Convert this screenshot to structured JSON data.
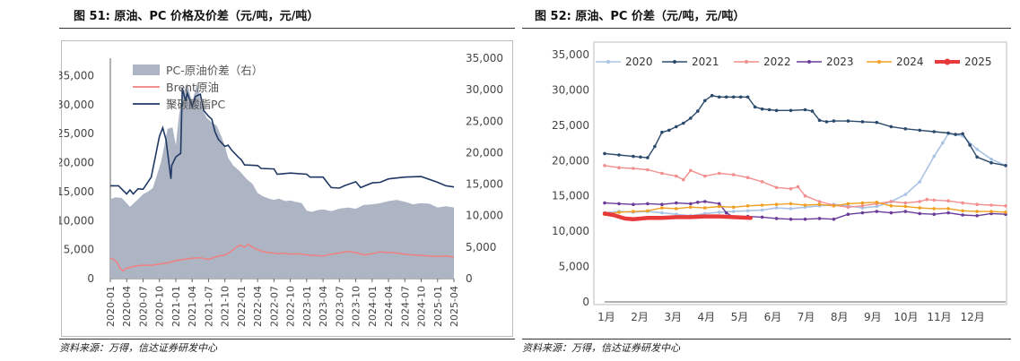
{
  "left": {
    "title": "图 51:  原油、PC 价格及价差（元/吨，元/吨）",
    "source": "资料来源：万得，信达证券研发中心",
    "chart_data": {
      "type": "area+line",
      "x_ticks": [
        "2020-01",
        "2020-04",
        "2020-07",
        "2020-10",
        "2021-01",
        "2021-04",
        "2021-07",
        "2021-10",
        "2022-01",
        "2022-04",
        "2022-07",
        "2022-10",
        "2023-01",
        "2023-04",
        "2023-07",
        "2023-10",
        "2024-01",
        "2024-04",
        "2024-07",
        "2024-10",
        "2025-01",
        "2025-04"
      ],
      "y_left_ticks": [
        "0",
        "5,000",
        "10,000",
        "15,000",
        "20,000",
        "25,000",
        "30,000",
        "35,000"
      ],
      "y_right_ticks": [
        "0",
        "5,000",
        "10,000",
        "15,000",
        "20,000",
        "25,000",
        "30,000",
        "35,000"
      ],
      "ylim_left": [
        0,
        38000
      ],
      "ylim_right": [
        0,
        35000
      ],
      "series": [
        {
          "name": "PC-原油价差（右）",
          "axis": "right",
          "kind": "area",
          "color": "#adb5c5",
          "x": [
            0,
            0.3,
            0.7,
            1.2,
            1.7,
            2,
            2.3,
            2.6,
            3.1,
            3.5,
            3.8,
            4,
            4.2,
            4.4,
            4.7,
            5,
            5.3,
            5.6,
            5.9,
            6.2,
            6.5,
            6.8,
            7,
            7.2,
            7.5,
            7.8,
            8,
            8.3,
            8.7,
            9,
            9.3,
            9.7,
            10,
            10.3,
            10.7,
            11,
            11.3,
            11.7,
            12,
            12.3,
            12.7,
            13,
            13.5,
            14,
            14.5,
            15,
            15.5,
            16,
            16.5,
            17,
            17.5,
            18,
            18.5,
            19,
            19.5,
            20,
            20.5,
            21,
            21
          ],
          "y": [
            12600,
            12900,
            12800,
            11400,
            12600,
            13400,
            13800,
            14400,
            18500,
            23800,
            24000,
            21200,
            26000,
            29000,
            31000,
            28000,
            31000,
            27000,
            25500,
            24800,
            24300,
            22500,
            21000,
            19200,
            18000,
            17300,
            16800,
            15900,
            15000,
            13600,
            13100,
            12700,
            12500,
            12700,
            12300,
            12400,
            12200,
            12000,
            10800,
            10600,
            10900,
            11000,
            10700,
            11100,
            11300,
            11100,
            11700,
            11800,
            12000,
            12300,
            12500,
            12200,
            11800,
            12000,
            11900,
            11300,
            11500,
            11300,
            11200
          ]
        },
        {
          "name": "Brent原油",
          "axis": "left",
          "kind": "line",
          "color": "#f08080",
          "x": [
            0,
            0.2,
            0.4,
            0.6,
            0.8,
            1,
            1.3,
            1.6,
            2,
            2.5,
            3,
            3.5,
            4,
            4.5,
            5,
            5.5,
            6,
            6.5,
            7,
            7.3,
            7.6,
            7.9,
            8.2,
            8.4,
            8.6,
            8.8,
            9,
            9.3,
            9.6,
            10,
            10.3,
            10.6,
            11,
            11.5,
            12,
            12.5,
            13,
            13.5,
            14,
            14.5,
            15,
            15.5,
            16,
            16.5,
            17,
            17.5,
            18,
            18.5,
            19,
            19.5,
            20,
            20.5,
            21
          ],
          "y": [
            3500,
            3300,
            2900,
            1700,
            1300,
            1800,
            2000,
            2200,
            2300,
            2300,
            2500,
            2700,
            3100,
            3300,
            3500,
            3600,
            3300,
            3800,
            4100,
            4500,
            5200,
            5800,
            5400,
            5900,
            5600,
            5200,
            5000,
            4700,
            4500,
            4400,
            4300,
            4400,
            4200,
            4300,
            4100,
            4000,
            3900,
            4200,
            4400,
            4700,
            4500,
            4100,
            4300,
            4600,
            4500,
            4400,
            4200,
            4100,
            4000,
            3900,
            3800,
            3900,
            3700
          ]
        },
        {
          "name": "聚碳酸酯PC",
          "axis": "left",
          "kind": "line",
          "color": "#1f3864",
          "x": [
            0,
            0.5,
            1,
            1.2,
            1.4,
            1.7,
            2,
            2.5,
            3,
            3.2,
            3.4,
            3.7,
            3.75,
            4,
            4.3,
            4.4,
            4.6,
            4.7,
            5,
            5.2,
            5.5,
            5.7,
            6,
            6.2,
            6.4,
            6.6,
            6.8,
            7,
            7.2,
            7.4,
            7.8,
            8,
            8.2,
            9,
            9.1,
            9.2,
            10,
            10.2,
            11,
            12,
            12.2,
            13,
            13.5,
            14,
            14.3,
            15,
            15.3,
            16,
            16.5,
            17,
            18,
            19,
            19.5,
            20,
            20.5,
            21
          ],
          "y": [
            16000,
            16000,
            14600,
            15300,
            14600,
            15500,
            15400,
            17500,
            24500,
            26000,
            24000,
            17200,
            19500,
            21000,
            21600,
            32800,
            30600,
            32000,
            29700,
            31400,
            31800,
            29000,
            28000,
            27500,
            25300,
            24000,
            23400,
            22800,
            23000,
            22200,
            21000,
            20500,
            19600,
            19500,
            19300,
            19000,
            18900,
            18000,
            18200,
            18000,
            17500,
            17500,
            15700,
            15600,
            16000,
            16700,
            15700,
            16500,
            16600,
            17200,
            17500,
            17600,
            17100,
            16600,
            16000,
            15800
          ]
        }
      ]
    }
  },
  "right": {
    "title": "图 52:  原油、PC 价差（元/吨，元/吨）",
    "source": "资料来源：万得，信达证券研发中心",
    "chart_data": {
      "type": "line",
      "x_ticks": [
        "1月",
        "2月",
        "3月",
        "4月",
        "5月",
        "6月",
        "7月",
        "8月",
        "9月",
        "10月",
        "11月",
        "12月"
      ],
      "y_ticks": [
        "0",
        "5,000",
        "10,000",
        "15,000",
        "20,000",
        "25,000",
        "30,000",
        "35,000"
      ],
      "ylim": [
        0,
        35000
      ],
      "series": [
        {
          "name": "2020",
          "color": "#a9c4e4",
          "width": 1.6,
          "markers": true,
          "x": [
            0,
            0.5,
            1,
            1.5,
            2,
            2.5,
            3,
            3.5,
            4,
            4.5,
            5,
            5.5,
            6,
            6.5,
            7,
            7.5,
            8,
            8.5,
            9,
            9.5,
            10,
            10.5,
            11,
            11.5,
            11.8,
            12,
            12.5,
            13,
            13.5,
            14
          ],
          "y": [
            12600,
            12800,
            12700,
            12800,
            12600,
            12400,
            12200,
            12500,
            12700,
            12800,
            12900,
            13000,
            13300,
            13200,
            13400,
            13600,
            13800,
            13600,
            13300,
            13500,
            14200,
            15200,
            17000,
            20600,
            22500,
            23800,
            23500,
            21600,
            20200,
            19300
          ]
        },
        {
          "name": "2021",
          "color": "#2b4a6b",
          "width": 1.4,
          "markers": true,
          "x": [
            0,
            0.5,
            1,
            1.25,
            1.5,
            1.75,
            2,
            2.25,
            2.5,
            2.75,
            3,
            3.25,
            3.5,
            3.75,
            4,
            4.25,
            4.5,
            4.75,
            5,
            5.25,
            5.5,
            5.75,
            6,
            6.5,
            7,
            7.25,
            7.5,
            7.75,
            8,
            8.5,
            9,
            9.5,
            10,
            10.5,
            11,
            11.5,
            12,
            12.25,
            12.5,
            12.75,
            13,
            13.5,
            14
          ],
          "y": [
            21000,
            20800,
            20600,
            20500,
            20400,
            22000,
            24000,
            24300,
            24800,
            25300,
            26000,
            27000,
            28500,
            29200,
            29000,
            29000,
            29000,
            29000,
            29000,
            27600,
            27300,
            27200,
            27100,
            27100,
            27200,
            27000,
            25700,
            25500,
            25600,
            25600,
            25500,
            25400,
            24800,
            24500,
            24300,
            24100,
            23900,
            23700,
            23800,
            22200,
            20500,
            19700,
            19300
          ]
        },
        {
          "name": "2022",
          "color": "#f28e8e",
          "width": 1.4,
          "markers": true,
          "x": [
            0,
            0.5,
            1,
            1.5,
            2,
            2.5,
            2.75,
            3,
            3.5,
            4,
            4.5,
            5,
            5.5,
            6,
            6.5,
            6.75,
            7,
            7.5,
            8,
            8.5,
            9,
            9.5,
            10,
            10.5,
            11,
            11.25,
            11.5,
            12,
            12.5,
            13,
            13.5,
            14
          ],
          "y": [
            19300,
            19000,
            18900,
            18700,
            18200,
            17800,
            17300,
            18600,
            17800,
            18200,
            18000,
            17600,
            17000,
            16200,
            16000,
            16300,
            15000,
            14200,
            13700,
            13400,
            13600,
            13900,
            14200,
            14000,
            14200,
            14500,
            14400,
            14300,
            14000,
            13800,
            13700,
            13600
          ]
        },
        {
          "name": "2023",
          "color": "#6a3d9a",
          "width": 1.4,
          "markers": true,
          "x": [
            0,
            0.5,
            1,
            1.5,
            2,
            2.5,
            3,
            3.25,
            3.5,
            4,
            4.25,
            4.5,
            5,
            5.5,
            6,
            6.5,
            7,
            7.5,
            8,
            8.5,
            9,
            9.5,
            10,
            10.5,
            11,
            11.5,
            12,
            12.5,
            13,
            13.5,
            14
          ],
          "y": [
            14000,
            13900,
            13800,
            13900,
            13800,
            14000,
            13900,
            14100,
            14200,
            13900,
            12600,
            12000,
            12100,
            12000,
            11800,
            11700,
            11700,
            11800,
            11700,
            12400,
            12600,
            12800,
            12600,
            12800,
            12500,
            12400,
            12600,
            12300,
            12200,
            12500,
            12400
          ]
        },
        {
          "name": "2024",
          "color": "#f0a020",
          "width": 1.4,
          "markers": true,
          "x": [
            0,
            0.5,
            1,
            1.5,
            2,
            2.5,
            3,
            3.5,
            4,
            4.5,
            5,
            5.5,
            6,
            6.5,
            7,
            7.5,
            8,
            8.5,
            9,
            9.5,
            10,
            10.5,
            11,
            11.5,
            12,
            12.5,
            13,
            13.5,
            14
          ],
          "y": [
            12400,
            12700,
            12800,
            12900,
            13300,
            13200,
            13400,
            13300,
            13500,
            13400,
            13600,
            13700,
            13800,
            13900,
            13700,
            13800,
            13600,
            13900,
            14000,
            14100,
            13600,
            13500,
            13300,
            13200,
            13200,
            12900,
            12800,
            12800,
            12700
          ]
        },
        {
          "name": "2025",
          "color": "#e83a3a",
          "width": 4.5,
          "markers": false,
          "x": [
            0,
            0.3,
            0.7,
            1,
            1.5,
            2,
            2.5,
            3,
            3.5,
            4,
            4.5,
            5.1
          ],
          "y": [
            12500,
            12300,
            11800,
            11700,
            11900,
            11900,
            12000,
            12000,
            12100,
            12100,
            12000,
            11900
          ]
        }
      ]
    }
  }
}
